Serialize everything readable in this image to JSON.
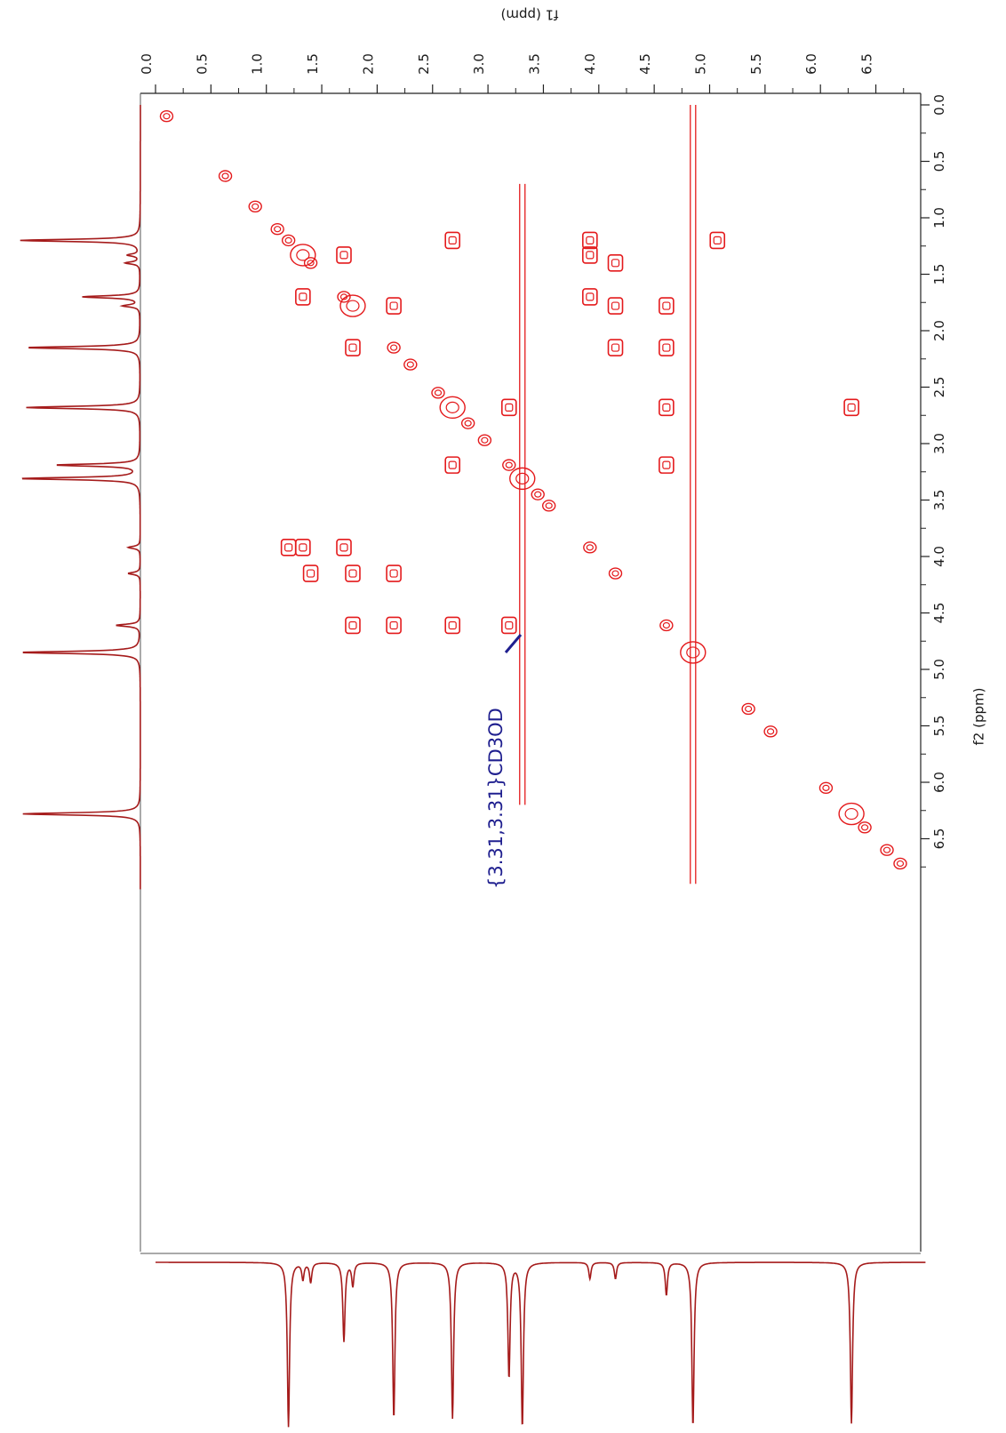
{
  "chart_data": {
    "type": "heatmap",
    "subtype": "2D NMR COSY contour plot (rotated 90 degrees)",
    "x_axis": {
      "label": "f2 (ppm)",
      "range": [
        0.0,
        7.0
      ],
      "ticks": [
        "0.0",
        "0.5",
        "1.0",
        "1.5",
        "2.0",
        "2.5",
        "3.0",
        "3.5",
        "4.0",
        "4.5",
        "5.0",
        "5.5",
        "6.0",
        "6.5"
      ]
    },
    "y_axis": {
      "label": "f1 (ppm)",
      "range": [
        0.0,
        7.0
      ],
      "ticks": [
        "0.0",
        "0.5",
        "1.0",
        "1.5",
        "2.0",
        "2.5",
        "3.0",
        "3.5",
        "4.0",
        "4.5",
        "5.0",
        "5.5",
        "6.0",
        "6.5"
      ]
    },
    "grid": false,
    "colors": {
      "contour": "#e41a1c",
      "projection": "#a51b1b",
      "annotation": "#1f1f8f"
    },
    "annotation": {
      "text": "{3.31,3.31}CD3OD",
      "x": 3.31,
      "y": 3.31
    },
    "diagonal_peaks": [
      {
        "x": 0.1,
        "y": 0.1
      },
      {
        "x": 0.63,
        "y": 0.63
      },
      {
        "x": 0.9,
        "y": 0.9
      },
      {
        "x": 1.1,
        "y": 1.1
      },
      {
        "x": 1.2,
        "y": 1.2
      },
      {
        "x": 1.33,
        "y": 1.33
      },
      {
        "x": 1.4,
        "y": 1.4
      },
      {
        "x": 1.7,
        "y": 1.7
      },
      {
        "x": 1.78,
        "y": 1.78
      },
      {
        "x": 2.15,
        "y": 2.15
      },
      {
        "x": 2.3,
        "y": 2.3
      },
      {
        "x": 2.55,
        "y": 2.55
      },
      {
        "x": 2.68,
        "y": 2.68
      },
      {
        "x": 2.82,
        "y": 2.82
      },
      {
        "x": 2.97,
        "y": 2.97
      },
      {
        "x": 3.19,
        "y": 3.19
      },
      {
        "x": 3.31,
        "y": 3.31
      },
      {
        "x": 3.45,
        "y": 3.45
      },
      {
        "x": 3.55,
        "y": 3.55
      },
      {
        "x": 3.92,
        "y": 3.92
      },
      {
        "x": 4.15,
        "y": 4.15
      },
      {
        "x": 4.61,
        "y": 4.61
      },
      {
        "x": 4.85,
        "y": 4.85
      },
      {
        "x": 5.35,
        "y": 5.35
      },
      {
        "x": 5.55,
        "y": 5.55
      },
      {
        "x": 6.05,
        "y": 6.05
      },
      {
        "x": 6.28,
        "y": 6.28
      },
      {
        "x": 6.4,
        "y": 6.4
      },
      {
        "x": 6.6,
        "y": 6.6
      },
      {
        "x": 6.72,
        "y": 6.72
      }
    ],
    "cross_peaks": [
      {
        "x": 1.2,
        "y": 3.92
      },
      {
        "x": 1.33,
        "y": 3.92
      },
      {
        "x": 1.4,
        "y": 4.15
      },
      {
        "x": 1.78,
        "y": 4.15
      },
      {
        "x": 1.7,
        "y": 3.92
      },
      {
        "x": 1.33,
        "y": 1.7
      },
      {
        "x": 1.7,
        "y": 1.33
      },
      {
        "x": 1.78,
        "y": 2.15
      },
      {
        "x": 2.15,
        "y": 1.78
      },
      {
        "x": 1.78,
        "y": 4.61
      },
      {
        "x": 2.15,
        "y": 4.15
      },
      {
        "x": 2.15,
        "y": 4.61
      },
      {
        "x": 2.68,
        "y": 3.19
      },
      {
        "x": 3.19,
        "y": 2.68
      },
      {
        "x": 2.68,
        "y": 4.61
      },
      {
        "x": 3.19,
        "y": 4.61
      },
      {
        "x": 4.61,
        "y": 3.19
      },
      {
        "x": 3.92,
        "y": 1.2
      },
      {
        "x": 3.92,
        "y": 1.33
      },
      {
        "x": 4.15,
        "y": 1.4
      },
      {
        "x": 3.92,
        "y": 1.7
      },
      {
        "x": 4.15,
        "y": 1.78
      },
      {
        "x": 4.15,
        "y": 2.15
      },
      {
        "x": 4.61,
        "y": 1.78
      },
      {
        "x": 4.61,
        "y": 2.15
      },
      {
        "x": 4.61,
        "y": 2.68
      },
      {
        "x": 1.2,
        "y": 2.68
      },
      {
        "x": 1.2,
        "y": 5.07
      },
      {
        "x": 2.68,
        "y": 6.28
      }
    ],
    "solvent_lines": [
      {
        "f1": 3.31,
        "from": 0.7,
        "to": 6.2
      },
      {
        "f1": 4.85,
        "from": 0.0,
        "to": 6.9
      }
    ],
    "projection_peaks": [
      {
        "ppm": 1.2,
        "height": 1.0
      },
      {
        "ppm": 1.33,
        "height": 0.1
      },
      {
        "ppm": 1.4,
        "height": 0.12
      },
      {
        "ppm": 1.7,
        "height": 0.48
      },
      {
        "ppm": 1.78,
        "height": 0.14
      },
      {
        "ppm": 2.15,
        "height": 0.95
      },
      {
        "ppm": 2.68,
        "height": 0.95
      },
      {
        "ppm": 3.19,
        "height": 0.7
      },
      {
        "ppm": 3.31,
        "height": 1.0
      },
      {
        "ppm": 3.92,
        "height": 0.1
      },
      {
        "ppm": 4.15,
        "height": 0.1
      },
      {
        "ppm": 4.61,
        "height": 0.2
      },
      {
        "ppm": 4.85,
        "height": 1.0
      },
      {
        "ppm": 6.28,
        "height": 0.98
      }
    ]
  }
}
